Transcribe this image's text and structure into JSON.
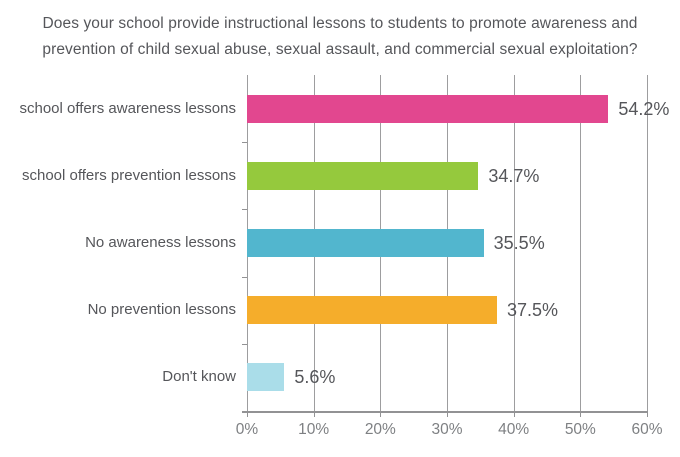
{
  "title": {
    "line1": "Does your school provide instructional lessons to students to promote awareness and",
    "line2": "prevention of child sexual abuse, sexual assault, and commercial sexual exploitation?"
  },
  "colors": {
    "title_text": "#55565a",
    "axis_text": "#7e8083",
    "grid": "#9d9d9f"
  },
  "chart_data": {
    "type": "bar",
    "orientation": "horizontal",
    "title": "Does your school provide instructional lessons to students to promote awareness and prevention of child sexual abuse, sexual assault, and commercial sexual exploitation?",
    "categories": [
      "school offers awareness lessons",
      "school offers prevention lessons",
      "No awareness lessons",
      "No prevention lessons",
      "Don't know"
    ],
    "values": [
      54.2,
      34.7,
      35.5,
      37.5,
      5.6
    ],
    "value_labels": [
      "54.2%",
      "34.7%",
      "35.5%",
      "37.5%",
      "5.6%"
    ],
    "bar_colors": [
      "#e2478f",
      "#95c93d",
      "#52b6ce",
      "#f5ad2b",
      "#aadde9"
    ],
    "xlim": [
      0,
      60
    ],
    "xtick_values": [
      0,
      10,
      20,
      30,
      40,
      50,
      60
    ],
    "xtick_labels": [
      "0%",
      "10%",
      "20%",
      "30%",
      "40%",
      "50%",
      "60%"
    ],
    "grid": "vertical",
    "legend": "none",
    "xlabel": "",
    "ylabel": ""
  }
}
